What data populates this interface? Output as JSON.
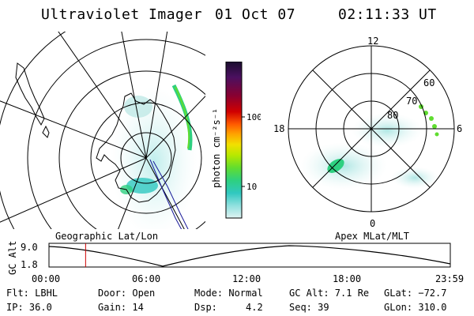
{
  "header": {
    "instrument": "Ultraviolet Imager",
    "date": "01 Oct 07",
    "time": "02:11:33 UT"
  },
  "colorbar": {
    "unit_label": "photon cm⁻²s⁻¹",
    "ticks": [
      "100",
      "10"
    ],
    "stops": [
      "#1a0d2e",
      "#4b1060",
      "#8a0030",
      "#d00000",
      "#ff5a00",
      "#ffa000",
      "#f2e000",
      "#b6e800",
      "#60dd30",
      "#2ed080",
      "#30c8c0",
      "#8fe0de",
      "#dff3f2"
    ]
  },
  "polar_plot": {
    "mlt_labels": [
      "12",
      "18",
      "6",
      "0"
    ],
    "lat_labels": [
      "60",
      "70",
      "80"
    ]
  },
  "strip": {
    "left_label": "Geographic Lat/Lon",
    "right_label": "Apex MLat/MLT",
    "y_axis_label": "GC Alt",
    "y_ticks": [
      "9.0",
      "1.8"
    ],
    "x_ticks": [
      "00:00",
      "06:00",
      "12:00",
      "18:00",
      "23:59"
    ],
    "marker_time_hours": 2.19
  },
  "status": {
    "filter": "Flt: LBHL",
    "ip": "IP: 36.0",
    "door": "Door: Open",
    "gain": "Gain: 14",
    "mode": "Mode: Normal",
    "dsp": "Dsp:     4.2",
    "gc_alt": "GC Alt: 7.1 Re",
    "seq": "Seq: 39",
    "glat": "GLat: −72.7",
    "glon": "GLon: 310.0"
  }
}
